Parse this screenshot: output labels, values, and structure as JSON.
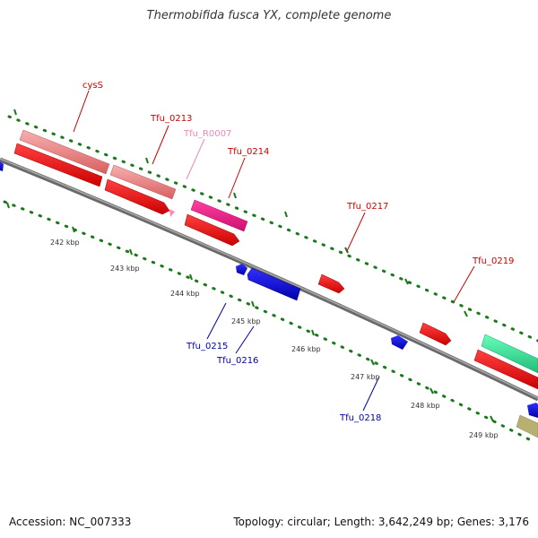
{
  "title": "Thermobifida fusca YX, complete genome",
  "footer": {
    "accession": "Accession: NC_007333",
    "stats": "Topology: circular; Length: 3,642,249 bp; Genes: 3,176"
  },
  "colors": {
    "backbone": "#808080",
    "tick": "#1a7a1a",
    "scale_text": "#333333",
    "forward_gene": "#ff0000",
    "forward_label": "#cc0000",
    "reverse_gene": "#0000ff",
    "reverse_label": "#0000aa",
    "cds_salmon": "#f08080",
    "rna_pink": "#ff66aa",
    "rna_label": "#ee88bb",
    "magenta": "#ff1493",
    "teal": "#33ee99",
    "olive": "#b8b070"
  },
  "scale": {
    "labels": [
      "242 kbp",
      "243 kbp",
      "244 kbp",
      "245 kbp",
      "246 kbp",
      "247 kbp",
      "248 kbp",
      "249 kbp"
    ]
  },
  "labels": {
    "cysS": "cysS",
    "tfu0213": "Tfu_0213",
    "tfuR0007": "Tfu_R0007",
    "tfu0214": "Tfu_0214",
    "tfu0217": "Tfu_0217",
    "tfu0219": "Tfu_0219",
    "tfu0215": "Tfu_0215",
    "tfu0216": "Tfu_0216",
    "tfu0218": "Tfu_0218"
  }
}
